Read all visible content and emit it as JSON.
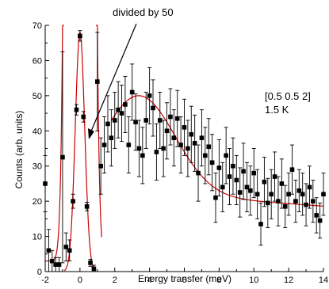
{
  "chart_data": {
    "type": "scatter",
    "title": "",
    "xlabel": "Energy transfer  (meV)",
    "ylabel": "Counts (arb. units)",
    "xlim": [
      -2,
      14
    ],
    "ylim": [
      0,
      70
    ],
    "x_ticks": [
      -2,
      0,
      2,
      4,
      6,
      8,
      10,
      12,
      14
    ],
    "y_ticks": [
      0,
      10,
      20,
      30,
      40,
      50,
      60,
      70
    ],
    "grid": false,
    "colors": {
      "points": "#000000",
      "fit": "#cc0000",
      "axis": "#000000"
    },
    "annotations": {
      "arrow_text": "divided by 50",
      "legend_line1": "[0.5 0.5 2]",
      "legend_line2": "1.5 K"
    },
    "series": [
      {
        "name": "",
        "points": [
          [
            -2.0,
            25.0,
            8
          ],
          [
            -1.8,
            6.0,
            6
          ],
          [
            -1.6,
            3.0,
            3
          ],
          [
            -1.4,
            2.0,
            2
          ],
          [
            -1.2,
            2.0,
            2
          ],
          [
            -1.0,
            32.5,
            30
          ],
          [
            -0.8,
            7.0,
            4
          ],
          [
            -0.6,
            6.0,
            3
          ],
          [
            -0.4,
            20.0,
            2
          ],
          [
            -0.2,
            46.0,
            1.5
          ],
          [
            0.0,
            67.0,
            1.5
          ],
          [
            0.2,
            44.0,
            1.5
          ],
          [
            0.4,
            18.5,
            1.2
          ],
          [
            0.6,
            2.5,
            1
          ],
          [
            0.8,
            0.8,
            1
          ],
          [
            1.0,
            54.0,
            14
          ],
          [
            1.2,
            30.0,
            8
          ],
          [
            1.4,
            36.0,
            8
          ],
          [
            1.6,
            42.0,
            8
          ],
          [
            1.8,
            38.0,
            8
          ],
          [
            2.0,
            43.0,
            8
          ],
          [
            2.2,
            46.0,
            8
          ],
          [
            2.4,
            45.0,
            8
          ],
          [
            2.6,
            47.5,
            8
          ],
          [
            2.8,
            36.0,
            8
          ],
          [
            3.0,
            51.0,
            8
          ],
          [
            3.2,
            42.5,
            8
          ],
          [
            3.4,
            35.0,
            8
          ],
          [
            3.6,
            33.0,
            8
          ],
          [
            3.8,
            43.0,
            8
          ],
          [
            4.0,
            50.0,
            8
          ],
          [
            4.2,
            46.5,
            8
          ],
          [
            4.4,
            34.0,
            8
          ],
          [
            4.6,
            43.0,
            8
          ],
          [
            4.8,
            35.0,
            8
          ],
          [
            5.0,
            40.0,
            8
          ],
          [
            5.2,
            44.0,
            8
          ],
          [
            5.4,
            38.0,
            8
          ],
          [
            5.6,
            43.5,
            8
          ],
          [
            5.8,
            36.0,
            8
          ],
          [
            6.0,
            41.0,
            8
          ],
          [
            6.2,
            35.0,
            8
          ],
          [
            6.4,
            39.0,
            8
          ],
          [
            6.6,
            36.5,
            8
          ],
          [
            6.8,
            28.0,
            8
          ],
          [
            7.0,
            38.0,
            8
          ],
          [
            7.2,
            33.0,
            8
          ],
          [
            7.4,
            35.5,
            8
          ],
          [
            7.6,
            31.0,
            8
          ],
          [
            7.8,
            21.0,
            7
          ],
          [
            8.0,
            29.5,
            8
          ],
          [
            8.2,
            24.0,
            7
          ],
          [
            8.4,
            33.0,
            8
          ],
          [
            8.6,
            27.0,
            8
          ],
          [
            8.8,
            30.0,
            8
          ],
          [
            9.0,
            26.0,
            7
          ],
          [
            9.2,
            22.5,
            7
          ],
          [
            9.4,
            28.5,
            8
          ],
          [
            9.6,
            24.0,
            7
          ],
          [
            9.8,
            23.0,
            7
          ],
          [
            10.0,
            28.0,
            7
          ],
          [
            10.2,
            22.0,
            7
          ],
          [
            10.4,
            13.5,
            6
          ],
          [
            10.6,
            25.5,
            7
          ],
          [
            10.8,
            19.5,
            7
          ],
          [
            11.0,
            22.0,
            7
          ],
          [
            11.2,
            27.0,
            7
          ],
          [
            11.4,
            20.0,
            7
          ],
          [
            11.6,
            25.0,
            7
          ],
          [
            11.8,
            18.5,
            6
          ],
          [
            12.0,
            22.0,
            6
          ],
          [
            12.2,
            29.0,
            7
          ],
          [
            12.4,
            20.0,
            6
          ],
          [
            12.6,
            23.0,
            6
          ],
          [
            12.8,
            22.0,
            6
          ],
          [
            13.0,
            19.0,
            6
          ],
          [
            13.2,
            24.0,
            6
          ],
          [
            13.4,
            20.0,
            6
          ],
          [
            13.6,
            16.0,
            5
          ],
          [
            13.8,
            14.5,
            5
          ],
          [
            14.0,
            22.0,
            6
          ]
        ]
      }
    ]
  }
}
